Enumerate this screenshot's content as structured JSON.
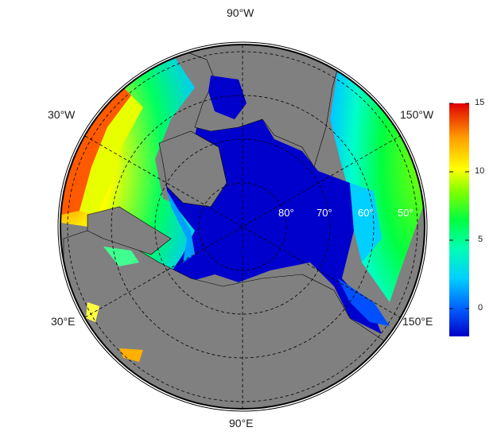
{
  "map": {
    "lon_labels": {
      "top": "90°W",
      "bottom": "90°E",
      "upper_left": "30°W",
      "upper_right": "150°W",
      "lower_left": "30°E",
      "lower_right": "150°E"
    },
    "lat_labels": [
      "80°",
      "70°",
      "60°",
      "50°"
    ],
    "projection": "north-polar-stereographic",
    "land_color": "#808080",
    "ocean_ice_color": "#0000cc",
    "graticule": "dashed"
  },
  "colorbar": {
    "ticks": [
      "15",
      "10",
      "5",
      "0"
    ],
    "min": -2,
    "max": 15,
    "colors": [
      "#0000c8",
      "#0040ff",
      "#00c8ff",
      "#00ffc8",
      "#00ff40",
      "#80ff00",
      "#ffff00",
      "#ffa000",
      "#ff4000",
      "#e00000"
    ]
  }
}
